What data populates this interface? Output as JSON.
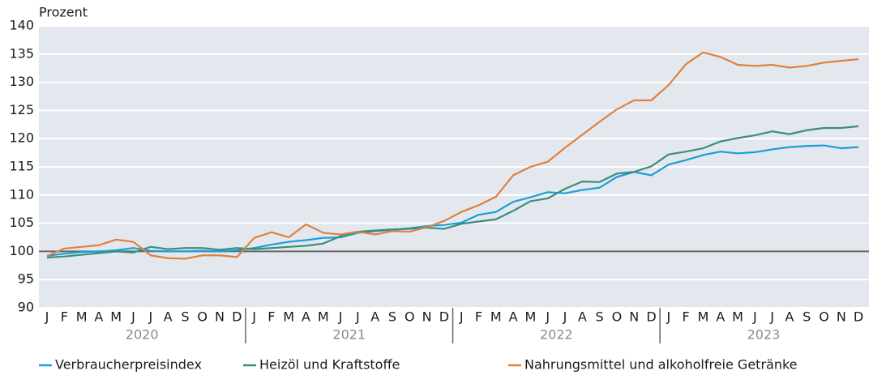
{
  "chart_data": {
    "type": "line",
    "y_label": "Prozent",
    "categories": [
      "J",
      "F",
      "M",
      "A",
      "M",
      "J",
      "J",
      "A",
      "S",
      "O",
      "N",
      "D",
      "J",
      "F",
      "M",
      "A",
      "M",
      "J",
      "J",
      "A",
      "S",
      "O",
      "N",
      "D",
      "J",
      "F",
      "M",
      "A",
      "M",
      "J",
      "J",
      "A",
      "S",
      "O",
      "N",
      "D",
      "J",
      "F",
      "M",
      "A",
      "M",
      "J",
      "J",
      "A",
      "S",
      "O",
      "N",
      "D"
    ],
    "years": [
      "2020",
      "2021",
      "2022",
      "2023"
    ],
    "ylim": [
      90,
      140
    ],
    "yticks": [
      90,
      95,
      100,
      105,
      110,
      115,
      120,
      125,
      130,
      135,
      140
    ],
    "grid": true,
    "reference_line": 100,
    "legend": "bottom",
    "series": [
      {
        "name": "Verbraucherpreisindex",
        "color": "#1a9fd8",
        "values": [
          99.2,
          99.6,
          99.9,
          100.0,
          100.2,
          100.6,
          100.1,
          100.0,
          100.0,
          100.1,
          100.0,
          100.2,
          100.6,
          101.2,
          101.7,
          102.0,
          102.4,
          102.5,
          103.3,
          103.6,
          103.8,
          104.1,
          104.5,
          104.7,
          105.1,
          106.5,
          107.0,
          108.8,
          109.6,
          110.5,
          110.3,
          110.9,
          111.3,
          113.2,
          114.1,
          113.5,
          115.4,
          116.2,
          117.1,
          117.7,
          117.4,
          117.6,
          118.1,
          118.5,
          118.7,
          118.8,
          118.3,
          118.5
        ]
      },
      {
        "name": "Heizöl und Kraftstoffe",
        "color": "#3d8c7c",
        "values": [
          98.9,
          99.1,
          99.4,
          99.7,
          100.0,
          99.8,
          100.8,
          100.4,
          100.6,
          100.6,
          100.3,
          100.6,
          100.4,
          100.6,
          100.8,
          101.0,
          101.4,
          102.7,
          103.5,
          103.7,
          103.9,
          104.0,
          104.2,
          104.0,
          104.9,
          105.3,
          105.7,
          107.2,
          108.9,
          109.4,
          111.1,
          112.4,
          112.3,
          113.8,
          114.1,
          115.1,
          117.2,
          117.7,
          118.3,
          119.5,
          120.1,
          120.6,
          121.3,
          120.8,
          121.5,
          121.9,
          121.9,
          122.2
        ]
      },
      {
        "name": "Nahrungsmittel und alkoholfreie Getränke",
        "color": "#e0803d",
        "values": [
          99.2,
          100.5,
          100.8,
          101.1,
          102.1,
          101.7,
          99.3,
          98.8,
          98.7,
          99.3,
          99.3,
          99.0,
          102.4,
          103.4,
          102.5,
          104.8,
          103.3,
          103.0,
          103.5,
          103.0,
          103.6,
          103.5,
          104.3,
          105.4,
          107.0,
          108.2,
          109.7,
          113.5,
          115.0,
          115.9,
          118.4,
          120.7,
          123.0,
          125.2,
          126.8,
          126.8,
          129.5,
          133.2,
          135.3,
          134.5,
          133.1,
          132.9,
          133.1,
          132.6,
          132.9,
          133.5,
          133.8,
          134.1
        ]
      }
    ]
  }
}
